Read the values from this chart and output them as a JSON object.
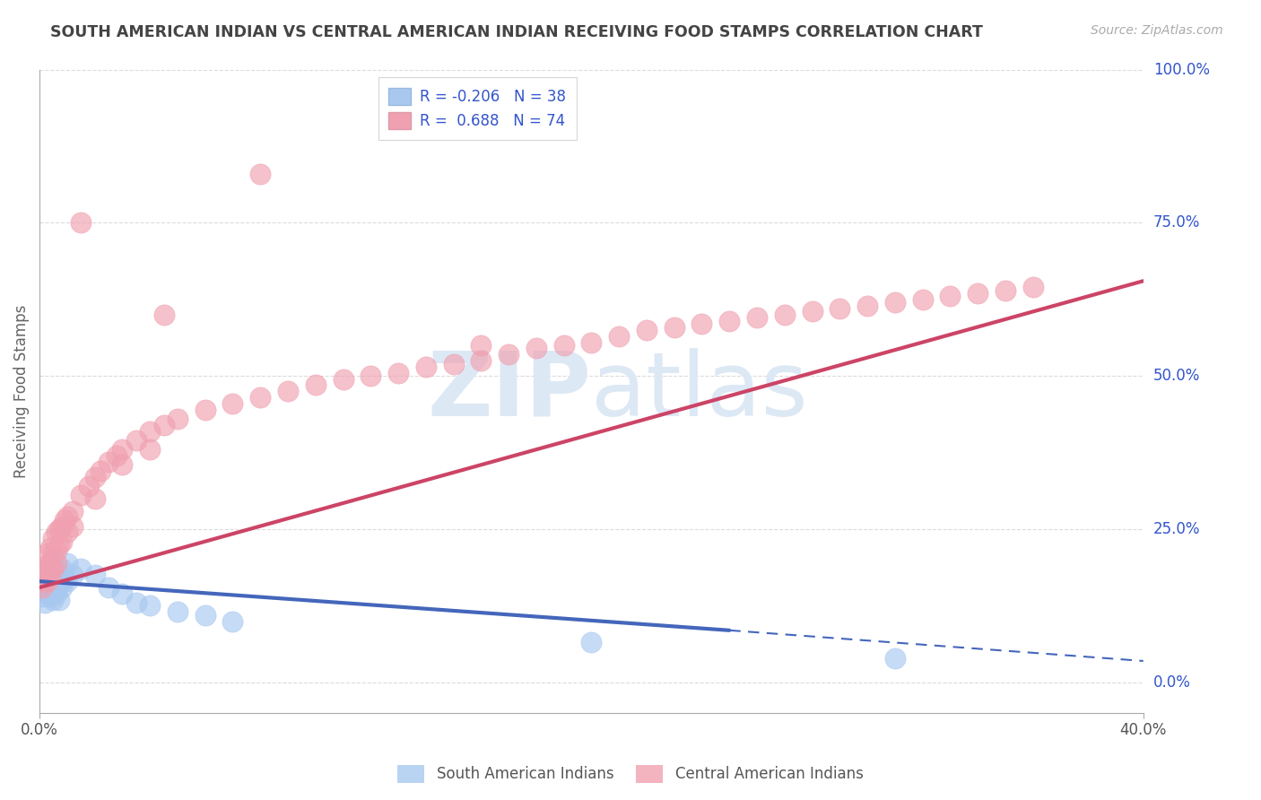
{
  "title": "SOUTH AMERICAN INDIAN VS CENTRAL AMERICAN INDIAN RECEIVING FOOD STAMPS CORRELATION CHART",
  "source": "Source: ZipAtlas.com",
  "ylabel": "Receiving Food Stamps",
  "legend1_label": "R = -0.206   N = 38",
  "legend2_label": "R =  0.688   N = 74",
  "scatter_blue": [
    [
      0.001,
      0.155
    ],
    [
      0.001,
      0.14
    ],
    [
      0.002,
      0.17
    ],
    [
      0.002,
      0.15
    ],
    [
      0.002,
      0.13
    ],
    [
      0.003,
      0.18
    ],
    [
      0.003,
      0.16
    ],
    [
      0.003,
      0.145
    ],
    [
      0.004,
      0.19
    ],
    [
      0.004,
      0.165
    ],
    [
      0.004,
      0.14
    ],
    [
      0.005,
      0.2
    ],
    [
      0.005,
      0.175
    ],
    [
      0.005,
      0.155
    ],
    [
      0.005,
      0.135
    ],
    [
      0.006,
      0.185
    ],
    [
      0.006,
      0.165
    ],
    [
      0.006,
      0.145
    ],
    [
      0.007,
      0.175
    ],
    [
      0.007,
      0.16
    ],
    [
      0.007,
      0.135
    ],
    [
      0.008,
      0.185
    ],
    [
      0.008,
      0.155
    ],
    [
      0.009,
      0.17
    ],
    [
      0.01,
      0.195
    ],
    [
      0.01,
      0.165
    ],
    [
      0.012,
      0.175
    ],
    [
      0.015,
      0.185
    ],
    [
      0.02,
      0.175
    ],
    [
      0.025,
      0.155
    ],
    [
      0.03,
      0.145
    ],
    [
      0.035,
      0.13
    ],
    [
      0.04,
      0.125
    ],
    [
      0.05,
      0.115
    ],
    [
      0.06,
      0.11
    ],
    [
      0.07,
      0.1
    ],
    [
      0.2,
      0.065
    ],
    [
      0.31,
      0.04
    ]
  ],
  "scatter_pink": [
    [
      0.001,
      0.17
    ],
    [
      0.001,
      0.155
    ],
    [
      0.002,
      0.19
    ],
    [
      0.002,
      0.165
    ],
    [
      0.003,
      0.21
    ],
    [
      0.003,
      0.185
    ],
    [
      0.003,
      0.165
    ],
    [
      0.004,
      0.22
    ],
    [
      0.004,
      0.195
    ],
    [
      0.004,
      0.175
    ],
    [
      0.005,
      0.235
    ],
    [
      0.005,
      0.21
    ],
    [
      0.005,
      0.185
    ],
    [
      0.006,
      0.245
    ],
    [
      0.006,
      0.215
    ],
    [
      0.006,
      0.195
    ],
    [
      0.007,
      0.25
    ],
    [
      0.007,
      0.225
    ],
    [
      0.008,
      0.255
    ],
    [
      0.008,
      0.23
    ],
    [
      0.009,
      0.265
    ],
    [
      0.01,
      0.27
    ],
    [
      0.01,
      0.245
    ],
    [
      0.012,
      0.28
    ],
    [
      0.012,
      0.255
    ],
    [
      0.015,
      0.305
    ],
    [
      0.018,
      0.32
    ],
    [
      0.02,
      0.335
    ],
    [
      0.02,
      0.3
    ],
    [
      0.022,
      0.345
    ],
    [
      0.025,
      0.36
    ],
    [
      0.028,
      0.37
    ],
    [
      0.03,
      0.38
    ],
    [
      0.03,
      0.355
    ],
    [
      0.035,
      0.395
    ],
    [
      0.04,
      0.41
    ],
    [
      0.04,
      0.38
    ],
    [
      0.045,
      0.42
    ],
    [
      0.05,
      0.43
    ],
    [
      0.06,
      0.445
    ],
    [
      0.07,
      0.455
    ],
    [
      0.08,
      0.465
    ],
    [
      0.09,
      0.475
    ],
    [
      0.1,
      0.485
    ],
    [
      0.11,
      0.495
    ],
    [
      0.12,
      0.5
    ],
    [
      0.13,
      0.505
    ],
    [
      0.14,
      0.515
    ],
    [
      0.15,
      0.52
    ],
    [
      0.16,
      0.525
    ],
    [
      0.16,
      0.55
    ],
    [
      0.17,
      0.535
    ],
    [
      0.18,
      0.545
    ],
    [
      0.19,
      0.55
    ],
    [
      0.2,
      0.555
    ],
    [
      0.21,
      0.565
    ],
    [
      0.22,
      0.575
    ],
    [
      0.23,
      0.58
    ],
    [
      0.24,
      0.585
    ],
    [
      0.25,
      0.59
    ],
    [
      0.26,
      0.595
    ],
    [
      0.27,
      0.6
    ],
    [
      0.28,
      0.605
    ],
    [
      0.29,
      0.61
    ],
    [
      0.3,
      0.615
    ],
    [
      0.31,
      0.62
    ],
    [
      0.32,
      0.625
    ],
    [
      0.33,
      0.63
    ],
    [
      0.34,
      0.635
    ],
    [
      0.35,
      0.64
    ],
    [
      0.36,
      0.645
    ],
    [
      0.015,
      0.75
    ],
    [
      0.045,
      0.6
    ],
    [
      0.08,
      0.83
    ]
  ],
  "blue_line": {
    "x": [
      0.0,
      0.25
    ],
    "y": [
      0.165,
      0.085
    ]
  },
  "blue_dashed": {
    "x": [
      0.25,
      0.4
    ],
    "y": [
      0.085,
      0.035
    ]
  },
  "pink_line": {
    "x": [
      0.0,
      0.4
    ],
    "y": [
      0.155,
      0.655
    ]
  },
  "title_color": "#444444",
  "source_color": "#aaaaaa",
  "blue_scatter_color": "#a8c8f0",
  "pink_scatter_color": "#f0a0b0",
  "blue_line_color": "#4466bb",
  "pink_line_color": "#cc4466",
  "legend_r_color": "#3355cc",
  "watermark_color": "#dde8f5",
  "background_color": "#ffffff",
  "grid_color": "#cccccc",
  "xmin": 0.0,
  "xmax": 0.4,
  "ymin": -0.05,
  "ymax": 1.0
}
